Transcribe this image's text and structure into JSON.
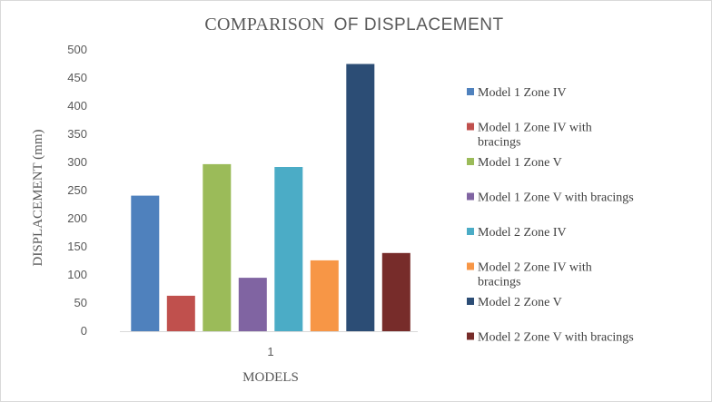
{
  "chart_data": {
    "type": "bar",
    "title_part1": "COMPARISON",
    "title_part2": "OF DISPLACEMENT",
    "xlabel": "MODELS",
    "ylabel": "DISPLACEMENT (mm)",
    "categories": [
      "1"
    ],
    "ylim": [
      0,
      500
    ],
    "yticks": [
      0,
      50,
      100,
      150,
      200,
      250,
      300,
      350,
      400,
      450,
      500
    ],
    "grid": false,
    "legend_position": "right",
    "series": [
      {
        "name": "Model  1 Zone IV",
        "name_lines": [
          "Model  1 Zone IV"
        ],
        "values": [
          241
        ],
        "color": "#4f81bd"
      },
      {
        "name": "Model  1 Zone IV with bracings",
        "name_lines": [
          "Model  1 Zone IV with",
          "bracings"
        ],
        "values": [
          63
        ],
        "color": "#c0504d"
      },
      {
        "name": "Model  1 Zone V",
        "name_lines": [
          "Model  1 Zone V"
        ],
        "values": [
          297
        ],
        "color": "#9bbb59"
      },
      {
        "name": "Model  1 Zone V with bracings",
        "name_lines": [
          "Model  1 Zone V with bracings"
        ],
        "values": [
          95
        ],
        "color": "#8064a2"
      },
      {
        "name": "Model  2 Zone IV",
        "name_lines": [
          "Model  2 Zone IV"
        ],
        "values": [
          292
        ],
        "color": "#4bacc6"
      },
      {
        "name": "Model  2 Zone IV with bracings",
        "name_lines": [
          "Model  2 Zone IV with",
          "bracings"
        ],
        "values": [
          126
        ],
        "color": "#f79646"
      },
      {
        "name": "Model  2 Zone V",
        "name_lines": [
          "Model  2 Zone V"
        ],
        "values": [
          475
        ],
        "color": "#2c4d75"
      },
      {
        "name": "Model  2 Zone V with bracings",
        "name_lines": [
          "Model  2 Zone V with bracings"
        ],
        "values": [
          139
        ],
        "color": "#772c2a"
      }
    ]
  }
}
